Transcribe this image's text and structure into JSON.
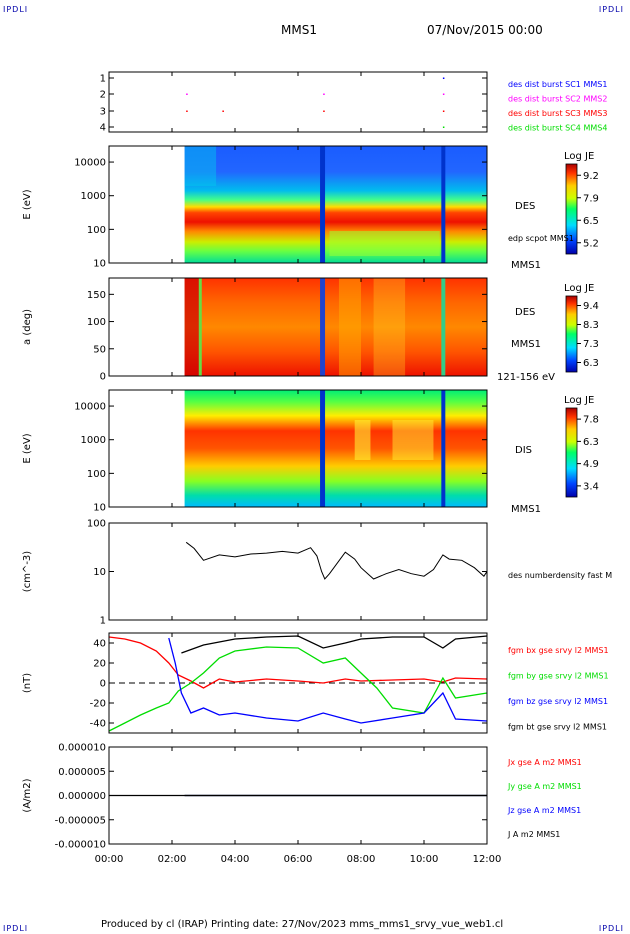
{
  "corners": {
    "tl": "IPDLI",
    "tr": "IPDLI",
    "bl": "IPDLI",
    "br": "IPDLI"
  },
  "header": {
    "spacecraft": "MMS1",
    "datetime": "07/Nov/2015 00:00"
  },
  "footer": {
    "text": "Produced by cl (IRAP)   Printing date: 27/Nov/2023   mms_mms1_srvy_vue_web1.cl"
  },
  "xaxis": {
    "ticks": [
      "00:00",
      "02:00",
      "04:00",
      "06:00",
      "08:00",
      "10:00",
      "12:00"
    ],
    "range_hours": [
      0,
      12
    ]
  },
  "colors": {
    "red": "#ff0000",
    "green": "#00dd00",
    "blue": "#0000ff",
    "black": "#000000",
    "magenta": "#ff00ff"
  },
  "chart_data": [
    {
      "type": "scatter",
      "panel": "burst",
      "yticks": [
        "1",
        "2",
        "3",
        "4"
      ],
      "legend": [
        {
          "name": "des dist burst SC1 MMS1",
          "color": "#0000ff"
        },
        {
          "name": "des dist burst SC2 MMS2",
          "color": "#ff00ff"
        },
        {
          "name": "des dist burst SC3 MMS3",
          "color": "#ff0000"
        },
        {
          "name": "des dist burst SC4 MMS4",
          "color": "#00dd00"
        }
      ]
    },
    {
      "type": "heatmap",
      "panel": "des_energy",
      "ylabel": "E (eV)",
      "yticks": [
        "10000",
        "1000",
        "100",
        "10"
      ],
      "yscale": "log",
      "ylim": [
        10,
        30000
      ],
      "instrument": "DES",
      "overlay": "edp scpot MMS1",
      "sc": "MMS1",
      "colorbar": {
        "title": "Log JE",
        "ticks": [
          "9.2",
          "7.9",
          "6.5",
          "5.2"
        ],
        "range": [
          5.2,
          9.2
        ]
      }
    },
    {
      "type": "heatmap",
      "panel": "des_pitch",
      "ylabel": "a (deg)",
      "yticks": [
        "150",
        "100",
        "50",
        "0"
      ],
      "ylim": [
        0,
        180
      ],
      "instrument": "DES",
      "sc": "MMS1",
      "energy_range": "121-156 eV",
      "colorbar": {
        "title": "Log JE",
        "ticks": [
          "9.4",
          "8.3",
          "7.3",
          "6.3"
        ],
        "range": [
          6.3,
          9.4
        ]
      }
    },
    {
      "type": "heatmap",
      "panel": "dis_energy",
      "ylabel": "E (eV)",
      "yticks": [
        "10000",
        "1000",
        "100",
        "10"
      ],
      "yscale": "log",
      "ylim": [
        10,
        30000
      ],
      "instrument": "DIS",
      "sc": "MMS1",
      "colorbar": {
        "title": "Log JE",
        "ticks": [
          "7.8",
          "6.3",
          "4.9",
          "3.4"
        ],
        "range": [
          3.4,
          7.8
        ]
      }
    },
    {
      "type": "line",
      "panel": "density",
      "ylabel": "(cm^-3)",
      "yticks": [
        "100",
        "10",
        "1"
      ],
      "yscale": "log",
      "ylim": [
        1,
        100
      ],
      "series": [
        {
          "name": "des numberdensity fast M",
          "color": "#000000",
          "x": [
            2.45,
            2.7,
            3.0,
            3.5,
            4.0,
            4.5,
            5.0,
            5.5,
            6.0,
            6.4,
            6.6,
            6.75,
            6.85,
            7.0,
            7.5,
            7.8,
            8.0,
            8.4,
            8.8,
            9.2,
            9.6,
            10.0,
            10.3,
            10.6,
            10.8,
            11.2,
            11.6,
            11.9,
            12.0
          ],
          "y": [
            40,
            30,
            17,
            22,
            20,
            23,
            24,
            26,
            24,
            31,
            21,
            10,
            7,
            9,
            25,
            18,
            12,
            7,
            9,
            11,
            9,
            8,
            11,
            22,
            18,
            17,
            12,
            8,
            10
          ]
        }
      ]
    },
    {
      "type": "line",
      "panel": "magnetic_field",
      "ylabel": "(nT)",
      "yticks": [
        "40",
        "20",
        "0",
        "-20",
        "-40"
      ],
      "ylim": [
        -50,
        50
      ],
      "series": [
        {
          "name": "fgm bx gse srvy l2 MMS1",
          "color": "#ff0000",
          "x": [
            0,
            0.5,
            1.0,
            1.5,
            1.9,
            2.2,
            2.6,
            3.0,
            3.5,
            4.0,
            5.0,
            6.0,
            6.8,
            7.5,
            8.0,
            9.0,
            10.0,
            10.6,
            11.0,
            12.0
          ],
          "y": [
            46,
            44,
            40,
            32,
            20,
            8,
            2,
            -5,
            4,
            1,
            4,
            2,
            0,
            4,
            2,
            3,
            4,
            1,
            5,
            4
          ]
        },
        {
          "name": "fgm by gse srvy l2 MMS1",
          "color": "#00dd00",
          "x": [
            0,
            0.5,
            1.0,
            1.5,
            1.9,
            2.2,
            2.6,
            3.0,
            3.5,
            4.0,
            5.0,
            6.0,
            6.8,
            7.5,
            8.0,
            8.5,
            9.0,
            10.0,
            10.6,
            11.0,
            12.0
          ],
          "y": [
            -48,
            -40,
            -32,
            -25,
            -20,
            -8,
            0,
            10,
            25,
            32,
            36,
            35,
            20,
            25,
            10,
            -5,
            -25,
            -30,
            5,
            -15,
            -10
          ]
        },
        {
          "name": "fgm bz gse srvy l2 MMS1",
          "color": "#0000ff",
          "x": [
            1.9,
            2.1,
            2.3,
            2.6,
            3.0,
            3.5,
            4.0,
            5.0,
            6.0,
            6.8,
            7.5,
            8.0,
            9.0,
            10.0,
            10.6,
            11.0,
            12.0
          ],
          "y": [
            45,
            20,
            -10,
            -30,
            -25,
            -32,
            -30,
            -35,
            -38,
            -30,
            -36,
            -40,
            -35,
            -30,
            -10,
            -36,
            -38
          ]
        },
        {
          "name": "fgm bt gse srvy l2 MMS1",
          "color": "#000000",
          "x": [
            2.3,
            3.0,
            4.0,
            5.0,
            6.0,
            6.8,
            7.5,
            8.0,
            9.0,
            10.0,
            10.6,
            11.0,
            12.0
          ],
          "y": [
            30,
            38,
            44,
            46,
            47,
            35,
            40,
            44,
            46,
            46,
            35,
            44,
            47
          ]
        }
      ]
    },
    {
      "type": "line",
      "panel": "current",
      "ylabel": "(A/m2)",
      "yticks": [
        "0.000010",
        "0.000005",
        "0.000000",
        "-0.000005",
        "-0.000010"
      ],
      "ylim": [
        -1e-05,
        1e-05
      ],
      "series": [
        {
          "name": "Jx gse A m2 MMS1",
          "color": "#ff0000",
          "x": [
            2.4,
            12.0
          ],
          "y": [
            0,
            0
          ]
        },
        {
          "name": "Jy gse A m2 MMS1",
          "color": "#00dd00",
          "x": [
            2.4,
            12.0
          ],
          "y": [
            0,
            0
          ]
        },
        {
          "name": "Jz gse A m2 MMS1",
          "color": "#0000ff",
          "x": [
            2.4,
            12.0
          ],
          "y": [
            0,
            0
          ]
        },
        {
          "name": "J A m2 MMS1",
          "color": "#000000",
          "x": [
            0,
            12.0
          ],
          "y": [
            0,
            0
          ]
        }
      ]
    }
  ]
}
